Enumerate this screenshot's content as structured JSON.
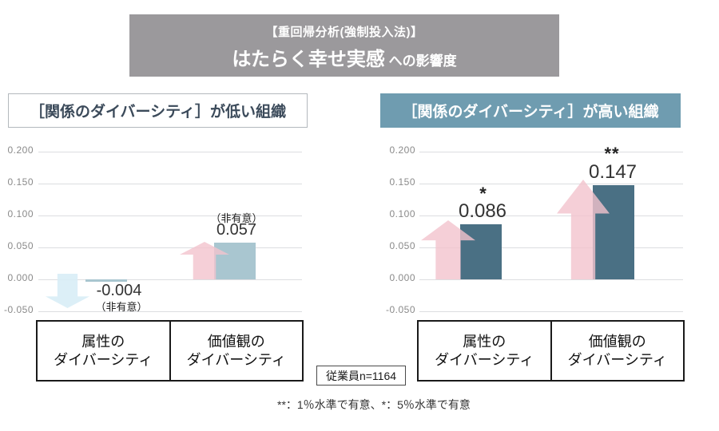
{
  "header": {
    "line1": "【重回帰分析(強制投入法)】",
    "title_main": "はたらく幸せ実感",
    "title_sub": " への影響度"
  },
  "chart_data": [
    {
      "type": "bar",
      "title": "［関係のダイバーシティ］が低い組織",
      "categories": [
        "属性のダイバーシティ",
        "価値観のダイバーシティ"
      ],
      "category_lines": [
        [
          "属性の",
          "ダイバーシティ"
        ],
        [
          "価値観の",
          "ダイバーシティ"
        ]
      ],
      "values": [
        -0.004,
        0.057
      ],
      "value_labels": [
        "-0.004",
        "0.057"
      ],
      "significance_labels": [
        "（非有意）",
        "（非有意）"
      ],
      "arrows": [
        "down",
        "up"
      ],
      "ylim": [
        -0.05,
        0.2
      ],
      "yticks": [
        0.2,
        0.15,
        0.1,
        0.05,
        0,
        -0.05
      ],
      "ytick_labels": [
        "0.200",
        "0.150",
        "0.100",
        "0.050",
        "0.000",
        "-0.050"
      ],
      "grid": true,
      "legend": "none",
      "xlabel": "",
      "ylabel": "",
      "bar_color": "#a9c6d0"
    },
    {
      "type": "bar",
      "title": "［関係のダイバーシティ］が高い組織",
      "categories": [
        "属性のダイバーシティ",
        "価値観のダイバーシティ"
      ],
      "category_lines": [
        [
          "属性の",
          "ダイバーシティ"
        ],
        [
          "価値観の",
          "ダイバーシティ"
        ]
      ],
      "values": [
        0.086,
        0.147
      ],
      "value_labels": [
        "0.086",
        "0.147"
      ],
      "significance_labels": [
        "*",
        "**"
      ],
      "arrows": [
        "up",
        "up"
      ],
      "ylim": [
        -0.05,
        0.2
      ],
      "yticks": [
        0.2,
        0.15,
        0.1,
        0.05,
        0,
        -0.05
      ],
      "ytick_labels": [
        "0.200",
        "0.150",
        "0.100",
        "0.050",
        "0.000",
        "-0.050"
      ],
      "grid": true,
      "legend": "none",
      "xlabel": "",
      "ylabel": "",
      "bar_color": "#4a7084"
    }
  ],
  "colors": {
    "header_bg": "#9b999c",
    "panel_high_bg": "#6f9cb0",
    "panel_low_text": "#3b4a5a",
    "bar_low": "#a9c6d0",
    "bar_high": "#4a7084",
    "arrow_up_pink": "#f2c3cd",
    "arrow_down_blue": "#d8edf6",
    "gridline": "#dcdde0"
  },
  "footer": {
    "n_badge": "従業員n=1164",
    "significance_note": "**：1％水準で有意、*：5％水準で有意"
  }
}
